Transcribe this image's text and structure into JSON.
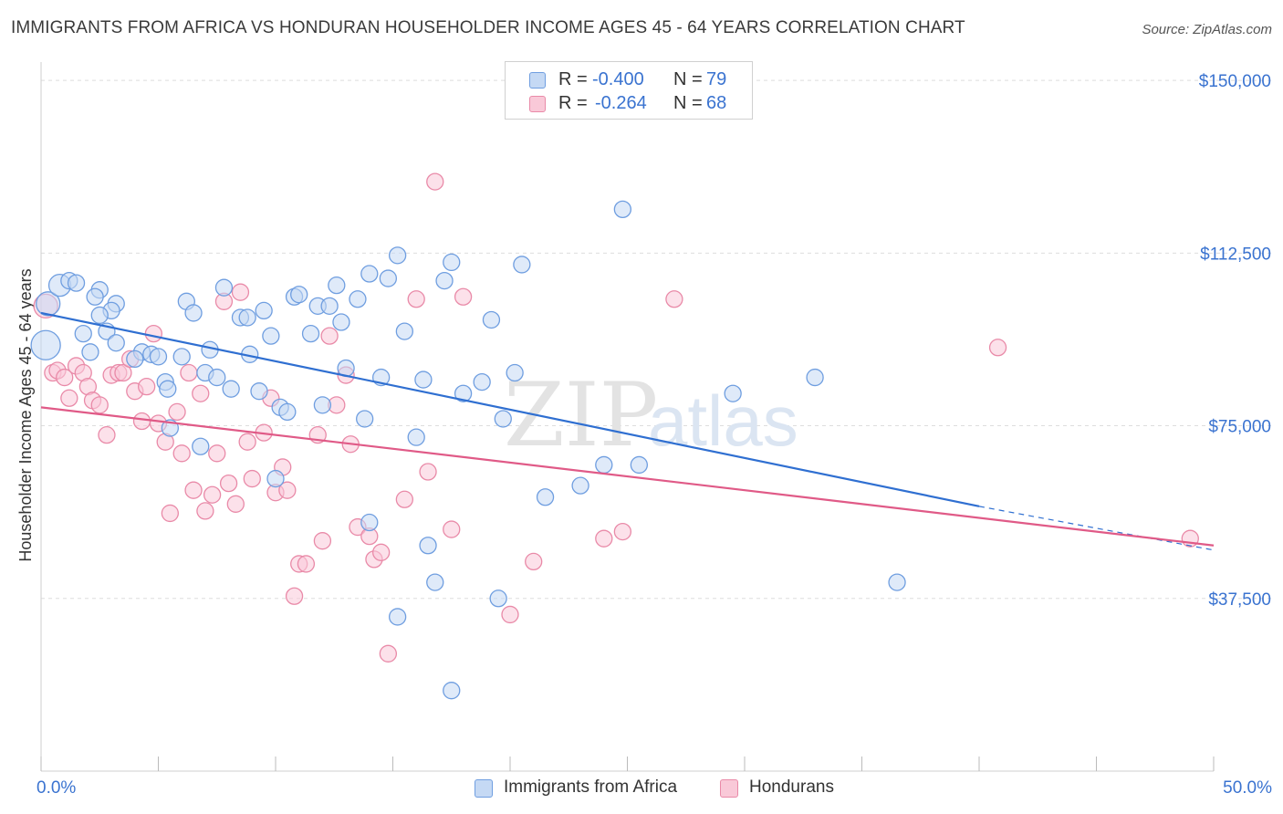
{
  "title": "IMMIGRANTS FROM AFRICA VS HONDURAN HOUSEHOLDER INCOME AGES 45 - 64 YEARS CORRELATION CHART",
  "source": "Source: ZipAtlas.com",
  "watermark": {
    "zip": "ZIP",
    "atlas": "atlas"
  },
  "legend": {
    "r_label": "R =",
    "n_label": "N =",
    "rows": [
      {
        "r": "-0.400",
        "n": "79",
        "fill": "#c5d9f4",
        "stroke": "#6f9ee0"
      },
      {
        "r": "-0.264",
        "n": "68",
        "fill": "#f9c9d8",
        "stroke": "#e98aa8"
      }
    ]
  },
  "colors": {
    "blue_fill": "#c5d9f4",
    "blue_stroke": "#6f9ee0",
    "blue_line": "#2f6fd1",
    "pink_fill": "#f9c9d8",
    "pink_stroke": "#e98aa8",
    "pink_line": "#e05a87",
    "axis_text": "#3a73d0",
    "grid": "#dddddd"
  },
  "chart_data": {
    "type": "scatter",
    "ylabel": "Householder Income Ages 45 - 64 years",
    "xlabel": "",
    "xlim": [
      0,
      50
    ],
    "ylim": [
      0,
      155000
    ],
    "x_tick_labels": [
      {
        "value": 0,
        "label": "0.0%"
      },
      {
        "value": 50,
        "label": "50.0%"
      }
    ],
    "y_ticks": [
      {
        "value": 37500,
        "label": "$37,500"
      },
      {
        "value": 75000,
        "label": "$75,000"
      },
      {
        "value": 112500,
        "label": "$112,500"
      },
      {
        "value": 150000,
        "label": "$150,000"
      }
    ],
    "legend_position": "top-center",
    "series": [
      {
        "name": "Immigrants from Africa",
        "color": "#6f9ee0",
        "trend": {
          "x": [
            0,
            40
          ],
          "y": [
            99500,
            57500
          ],
          "dash_to_x": 50,
          "dash_to_y": 48000
        },
        "points": [
          [
            0.2,
            92500,
            16
          ],
          [
            0.3,
            101500,
            13
          ],
          [
            0.8,
            105500,
            12
          ],
          [
            1.2,
            106500,
            9
          ],
          [
            1.5,
            106000,
            9
          ],
          [
            2.5,
            104500,
            9
          ],
          [
            2.3,
            103000,
            9
          ],
          [
            3.2,
            101500,
            9
          ],
          [
            3.0,
            100000,
            9
          ],
          [
            1.8,
            95000,
            9
          ],
          [
            2.8,
            95500,
            9
          ],
          [
            3.2,
            93000,
            9
          ],
          [
            2.1,
            91000,
            9
          ],
          [
            4.3,
            91000,
            9
          ],
          [
            4.7,
            90500,
            9
          ],
          [
            5.0,
            90000,
            9
          ],
          [
            5.3,
            84500,
            9
          ],
          [
            5.4,
            83000,
            9
          ],
          [
            6.0,
            90000,
            9
          ],
          [
            6.2,
            102000,
            9
          ],
          [
            6.5,
            99500,
            9
          ],
          [
            7.0,
            86500,
            9
          ],
          [
            7.2,
            91500,
            9
          ],
          [
            7.5,
            85500,
            9
          ],
          [
            7.8,
            105000,
            9
          ],
          [
            8.1,
            83000,
            9
          ],
          [
            8.5,
            98500,
            9
          ],
          [
            8.8,
            98500,
            9
          ],
          [
            8.9,
            90500,
            9
          ],
          [
            9.3,
            82500,
            9
          ],
          [
            9.5,
            100000,
            9
          ],
          [
            9.8,
            94500,
            9
          ],
          [
            10.2,
            79000,
            9
          ],
          [
            10.5,
            78000,
            9
          ],
          [
            10.8,
            103000,
            9
          ],
          [
            11.0,
            103500,
            9
          ],
          [
            11.5,
            95000,
            9
          ],
          [
            11.8,
            101000,
            9
          ],
          [
            12.0,
            79500,
            9
          ],
          [
            12.3,
            101000,
            9
          ],
          [
            12.6,
            105500,
            9
          ],
          [
            12.8,
            97500,
            9
          ],
          [
            13.0,
            87500,
            9
          ],
          [
            13.5,
            102500,
            9
          ],
          [
            13.8,
            76500,
            9
          ],
          [
            14.0,
            108000,
            9
          ],
          [
            14.5,
            85500,
            9
          ],
          [
            14.8,
            107000,
            9
          ],
          [
            15.2,
            112000,
            9
          ],
          [
            15.5,
            95500,
            9
          ],
          [
            16.0,
            72500,
            9
          ],
          [
            16.3,
            85000,
            9
          ],
          [
            16.5,
            49000,
            9
          ],
          [
            16.8,
            41000,
            9
          ],
          [
            17.2,
            106500,
            9
          ],
          [
            17.5,
            110500,
            9
          ],
          [
            17.5,
            17500,
            9
          ],
          [
            18.0,
            82000,
            9
          ],
          [
            18.8,
            84500,
            9
          ],
          [
            19.2,
            98000,
            9
          ],
          [
            19.5,
            37500,
            9
          ],
          [
            19.7,
            76500,
            9
          ],
          [
            20.2,
            86500,
            9
          ],
          [
            20.5,
            110000,
            9
          ],
          [
            21.5,
            59500,
            9
          ],
          [
            23.0,
            62000,
            9
          ],
          [
            24.0,
            66500,
            9
          ],
          [
            24.8,
            122000,
            9
          ],
          [
            25.5,
            66500,
            9
          ],
          [
            29.5,
            82000,
            9
          ],
          [
            33.0,
            85500,
            9
          ],
          [
            36.5,
            41000,
            9
          ],
          [
            14.0,
            54000,
            9
          ],
          [
            15.2,
            33500,
            9
          ],
          [
            5.5,
            74500,
            9
          ],
          [
            6.8,
            70500,
            9
          ],
          [
            10.0,
            63500,
            9
          ],
          [
            4.0,
            89500,
            9
          ],
          [
            2.5,
            99000,
            9
          ]
        ]
      },
      {
        "name": "Hondurans",
        "color": "#e98aa8",
        "trend": {
          "x": [
            0,
            50
          ],
          "y": [
            79000,
            49000
          ]
        },
        "points": [
          [
            0.2,
            101000,
            13
          ],
          [
            0.5,
            86500,
            9
          ],
          [
            0.7,
            87000,
            9
          ],
          [
            1.0,
            85500,
            9
          ],
          [
            1.2,
            81000,
            9
          ],
          [
            1.5,
            88000,
            9
          ],
          [
            1.8,
            86500,
            9
          ],
          [
            2.0,
            83500,
            9
          ],
          [
            2.2,
            80500,
            9
          ],
          [
            2.5,
            79500,
            9
          ],
          [
            2.8,
            73000,
            9
          ],
          [
            3.0,
            86000,
            9
          ],
          [
            3.3,
            86500,
            9
          ],
          [
            3.5,
            86500,
            9
          ],
          [
            3.8,
            89500,
            9
          ],
          [
            4.0,
            82500,
            9
          ],
          [
            4.3,
            76000,
            9
          ],
          [
            4.5,
            83500,
            9
          ],
          [
            4.8,
            95000,
            9
          ],
          [
            5.0,
            75500,
            9
          ],
          [
            5.3,
            71500,
            9
          ],
          [
            5.5,
            56000,
            9
          ],
          [
            5.8,
            78000,
            9
          ],
          [
            6.0,
            69000,
            9
          ],
          [
            6.3,
            86500,
            9
          ],
          [
            6.5,
            61000,
            9
          ],
          [
            6.8,
            82000,
            9
          ],
          [
            7.0,
            56500,
            9
          ],
          [
            7.3,
            60000,
            9
          ],
          [
            7.5,
            69000,
            9
          ],
          [
            7.8,
            102000,
            9
          ],
          [
            8.0,
            62500,
            9
          ],
          [
            8.3,
            58000,
            9
          ],
          [
            8.5,
            104000,
            9
          ],
          [
            8.8,
            71500,
            9
          ],
          [
            9.0,
            63500,
            9
          ],
          [
            9.5,
            73500,
            9
          ],
          [
            9.8,
            81000,
            9
          ],
          [
            10.0,
            60500,
            9
          ],
          [
            10.3,
            66000,
            9
          ],
          [
            10.5,
            61000,
            9
          ],
          [
            10.8,
            38000,
            9
          ],
          [
            11.0,
            45000,
            9
          ],
          [
            11.3,
            45000,
            9
          ],
          [
            11.8,
            73000,
            9
          ],
          [
            12.0,
            50000,
            9
          ],
          [
            12.3,
            94500,
            9
          ],
          [
            12.6,
            79500,
            9
          ],
          [
            13.0,
            86000,
            9
          ],
          [
            13.2,
            71000,
            9
          ],
          [
            13.5,
            53000,
            9
          ],
          [
            14.0,
            51000,
            9
          ],
          [
            14.2,
            46000,
            9
          ],
          [
            14.5,
            47500,
            9
          ],
          [
            14.8,
            25500,
            9
          ],
          [
            15.5,
            59000,
            9
          ],
          [
            16.0,
            102500,
            9
          ],
          [
            16.5,
            65000,
            9
          ],
          [
            16.8,
            128000,
            9
          ],
          [
            17.5,
            52500,
            9
          ],
          [
            18.0,
            103000,
            9
          ],
          [
            20.0,
            34000,
            9
          ],
          [
            21.0,
            45500,
            9
          ],
          [
            24.0,
            50500,
            9
          ],
          [
            24.8,
            52000,
            9
          ],
          [
            27.0,
            102500,
            9
          ],
          [
            40.8,
            92000,
            9
          ],
          [
            49.0,
            50500,
            9
          ]
        ]
      }
    ]
  },
  "bottom_legend": [
    {
      "label": "Immigrants from Africa",
      "fill": "#c5d9f4",
      "stroke": "#6f9ee0"
    },
    {
      "label": "Hondurans",
      "fill": "#f9c9d8",
      "stroke": "#e98aa8"
    }
  ]
}
